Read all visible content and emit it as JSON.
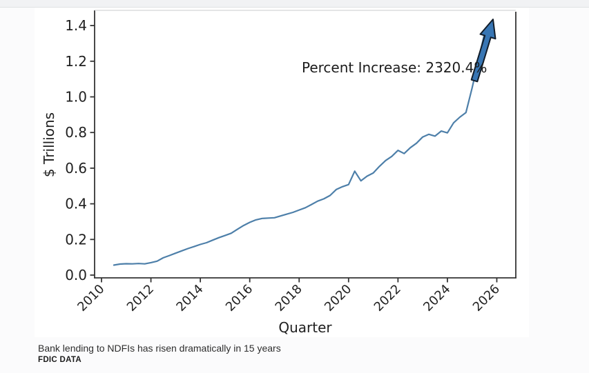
{
  "page": {
    "background": "#fbfbfc"
  },
  "caption": {
    "headline": "Bank lending to NDFIs has risen dramatically in 15 years",
    "source": "FDIC DATA"
  },
  "chart_data": {
    "type": "line",
    "title": "",
    "xlabel": "Quarter",
    "ylabel": "$ Trillions",
    "annotation": "Percent Increase: 2320.4%",
    "x_tick_labels": [
      "2010",
      "2012",
      "2014",
      "2016",
      "2018",
      "2020",
      "2022",
      "2024",
      "2026"
    ],
    "y_tick_labels": [
      "0.0",
      "0.2",
      "0.4",
      "0.6",
      "0.8",
      "1.0",
      "1.2",
      "1.4"
    ],
    "xlim": [
      2009.7,
      2026.35
    ],
    "ylim": [
      0,
      1.45
    ],
    "grid": false,
    "legend": "none",
    "line_color": "#4d7fa9",
    "arrow_color": "#3876b4",
    "series": [
      {
        "name": "Bank lending to NDFIs ($ trillions)",
        "quarters": [
          "2010Q2",
          "2010Q3",
          "2010Q4",
          "2011Q1",
          "2011Q2",
          "2011Q3",
          "2011Q4",
          "2012Q1",
          "2012Q2",
          "2012Q3",
          "2012Q4",
          "2013Q1",
          "2013Q2",
          "2013Q3",
          "2013Q4",
          "2014Q1",
          "2014Q2",
          "2014Q3",
          "2014Q4",
          "2015Q1",
          "2015Q2",
          "2015Q3",
          "2015Q4",
          "2016Q1",
          "2016Q2",
          "2016Q3",
          "2016Q4",
          "2017Q1",
          "2017Q2",
          "2017Q3",
          "2017Q4",
          "2018Q1",
          "2018Q2",
          "2018Q3",
          "2018Q4",
          "2019Q1",
          "2019Q2",
          "2019Q3",
          "2019Q4",
          "2020Q1",
          "2020Q2",
          "2020Q3",
          "2020Q4",
          "2021Q1",
          "2021Q2",
          "2021Q3",
          "2021Q4",
          "2022Q1",
          "2022Q2",
          "2022Q3",
          "2022Q4",
          "2023Q1",
          "2023Q2",
          "2023Q3",
          "2023Q4",
          "2024Q1",
          "2024Q2",
          "2024Q3",
          "2024Q4",
          "2025Q1",
          "2025Q2"
        ],
        "values": [
          0.056,
          0.062,
          0.064,
          0.063,
          0.065,
          0.063,
          0.07,
          0.078,
          0.097,
          0.11,
          0.123,
          0.136,
          0.149,
          0.16,
          0.172,
          0.182,
          0.196,
          0.21,
          0.222,
          0.235,
          0.257,
          0.278,
          0.296,
          0.31,
          0.318,
          0.32,
          0.322,
          0.332,
          0.342,
          0.352,
          0.365,
          0.378,
          0.396,
          0.415,
          0.428,
          0.447,
          0.48,
          0.496,
          0.508,
          0.583,
          0.529,
          0.555,
          0.573,
          0.61,
          0.643,
          0.666,
          0.7,
          0.682,
          0.715,
          0.74,
          0.775,
          0.79,
          0.78,
          0.808,
          0.798,
          0.854,
          0.886,
          0.912,
          1.05,
          1.2,
          1.355
        ]
      }
    ]
  }
}
